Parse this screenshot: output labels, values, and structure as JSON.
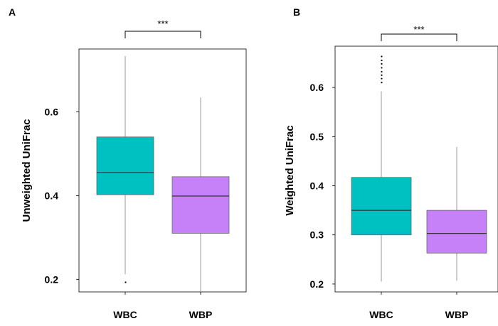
{
  "chart_data": [
    {
      "type": "box",
      "panel_label": "A",
      "ylabel": "Unweighted UniFrac",
      "categories": [
        "WBC",
        "WBP"
      ],
      "ylim": [
        0.17,
        0.75
      ],
      "yticks": [
        0.2,
        0.4,
        0.6
      ],
      "ytick_labels": [
        "0.2",
        "0.4",
        "0.6"
      ],
      "significance": {
        "text": "***",
        "between": [
          "WBC",
          "WBP"
        ]
      },
      "boxes": [
        {
          "name": "WBC",
          "color": "#00C1C1",
          "whisker_low": 0.212,
          "q1": 0.402,
          "median": 0.455,
          "q3": 0.54,
          "whisker_high": 0.733,
          "outliers": [
            0.193
          ]
        },
        {
          "name": "WBP",
          "color": "#C680F8",
          "whisker_low": 0.17,
          "q1": 0.31,
          "median": 0.399,
          "q3": 0.445,
          "whisker_high": 0.634,
          "outliers": []
        }
      ],
      "grid": false
    },
    {
      "type": "box",
      "panel_label": "B",
      "ylabel": "Weighted UniFrac",
      "categories": [
        "WBC",
        "WBP"
      ],
      "ylim": [
        0.184,
        0.684
      ],
      "yticks": [
        0.2,
        0.3,
        0.4,
        0.5,
        0.6
      ],
      "ytick_labels": [
        "0.2",
        "0.3",
        "0.4",
        "0.5",
        "0.6"
      ],
      "significance": {
        "text": "***",
        "between": [
          "WBC",
          "WBP"
        ]
      },
      "boxes": [
        {
          "name": "WBC",
          "color": "#00C1C1",
          "whisker_low": 0.205,
          "q1": 0.3,
          "median": 0.35,
          "q3": 0.417,
          "whisker_high": 0.592,
          "outliers": [
            0.61,
            0.618,
            0.625,
            0.632,
            0.64,
            0.648,
            0.655,
            0.663
          ]
        },
        {
          "name": "WBP",
          "color": "#C680F8",
          "whisker_low": 0.207,
          "q1": 0.263,
          "median": 0.303,
          "q3": 0.35,
          "whisker_high": 0.479,
          "outliers": []
        }
      ],
      "grid": false
    }
  ]
}
